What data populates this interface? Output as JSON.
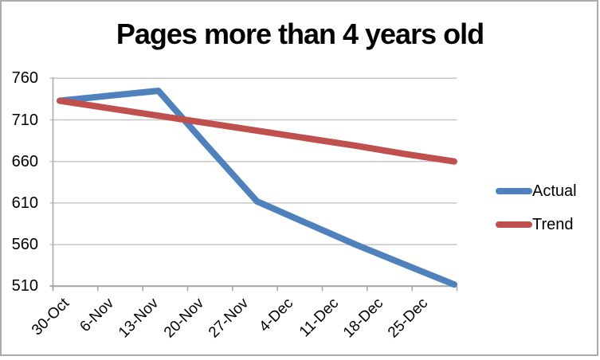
{
  "chart_data": {
    "type": "line",
    "title": "Pages more than 4 years old",
    "categories": [
      "30-Oct",
      "6-Nov",
      "13-Nov",
      "20-Nov",
      "27-Nov",
      "4-Dec",
      "11-Dec",
      "18-Dec",
      "25-Dec"
    ],
    "series": [
      {
        "name": "Actual",
        "color": "#4F81BD",
        "values": [
          733,
          739,
          745,
          678,
          612,
          586,
          560,
          536,
          512
        ]
      },
      {
        "name": "Trend",
        "color": "#C0504D",
        "values": [
          733,
          724,
          715,
          706,
          697,
          688,
          679,
          669,
          660
        ]
      }
    ],
    "xlabel": "",
    "ylabel": "",
    "ylim": [
      510,
      760
    ],
    "yticks": [
      760,
      710,
      660,
      610,
      560,
      510
    ],
    "grid": "horizontal-only",
    "legend_position": "right",
    "legend_labels": [
      "Actual",
      "Trend"
    ],
    "colors": {
      "gridline": "#C6C6C6",
      "axis": "#A3A3A3",
      "frame": "#ABABAB",
      "text": "#000000",
      "background": "#FFFFFF"
    }
  }
}
